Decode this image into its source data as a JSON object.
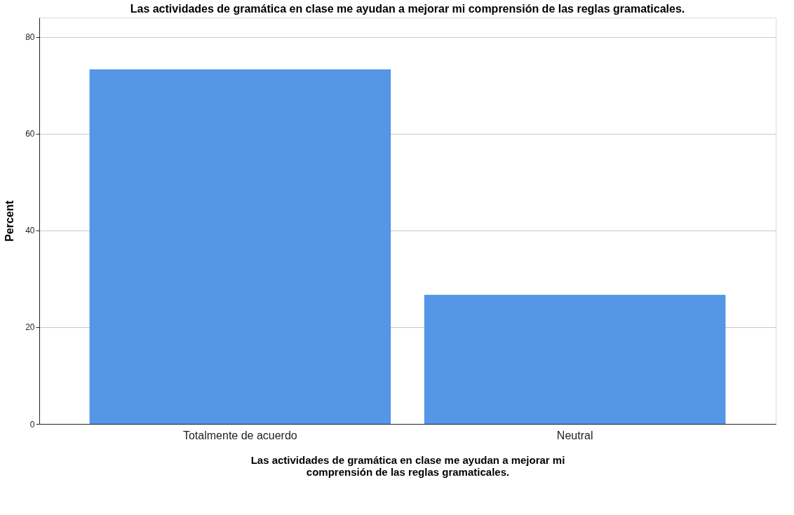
{
  "chart_data": {
    "type": "bar",
    "title": "Las actividades de gramática en clase me ayudan a mejorar mi comprensión de las reglas gramaticales.",
    "xlabel": "Las actividades de gramática en clase me ayudan a mejorar mi comprensión de las reglas gramaticales.",
    "ylabel": "Percent",
    "categories": [
      "Totalmente de acuerdo",
      "Neutral"
    ],
    "values": [
      73.3,
      26.7
    ],
    "color": "#5596e6",
    "ylim": [
      0,
      84
    ],
    "yticks": [
      0,
      20,
      40,
      60,
      80
    ],
    "grid": "y"
  }
}
